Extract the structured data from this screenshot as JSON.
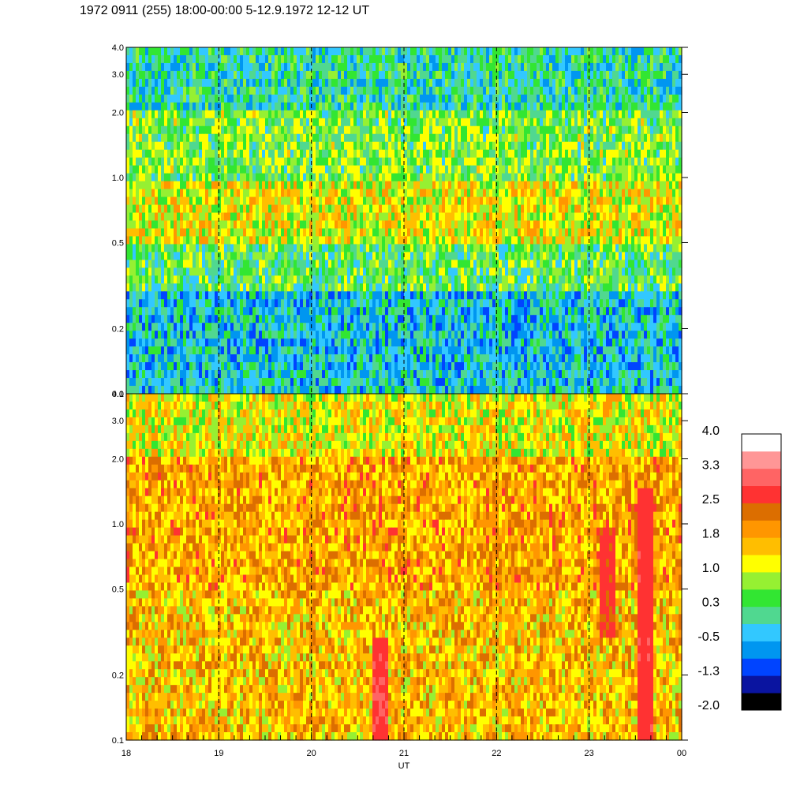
{
  "title": "1972 0911 (255) 18:00-00:00 5-12.9.1972  12-12 UT",
  "chart_data": [
    {
      "type": "heatmap",
      "panel": "upper",
      "y_scale": "log",
      "ylim": [
        0.1,
        4.0
      ],
      "y_ticks": [
        "4.0",
        "3.0",
        "2.0",
        "1.0",
        "0.5",
        "0.2",
        "0.1"
      ],
      "x_ticks": [
        "18",
        "19",
        "20",
        "21",
        "22",
        "23",
        "00"
      ],
      "xlabel": "UT",
      "dominant_colors_by_band": [
        {
          "y_range": [
            2.0,
            4.0
          ],
          "value": 0.0
        },
        {
          "y_range": [
            1.0,
            2.0
          ],
          "value": 0.6
        },
        {
          "y_range": [
            0.5,
            1.0
          ],
          "value": 1.2
        },
        {
          "y_range": [
            0.3,
            0.5
          ],
          "value": 0.4
        },
        {
          "y_range": [
            0.1,
            0.3
          ],
          "value": -0.3
        }
      ]
    },
    {
      "type": "heatmap",
      "panel": "lower",
      "y_scale": "log",
      "ylim": [
        0.1,
        4.0
      ],
      "y_ticks": [
        "4.0",
        "3.0",
        "2.0",
        "1.0",
        "0.5",
        "0.2",
        "0.1"
      ],
      "x_ticks": [
        "18",
        "19",
        "20",
        "21",
        "22",
        "23",
        "00"
      ],
      "xlabel": "UT",
      "dominant_colors_by_band": [
        {
          "y_range": [
            2.0,
            4.0
          ],
          "value": 1.2
        },
        {
          "y_range": [
            0.5,
            2.0
          ],
          "value": 1.8
        },
        {
          "y_range": [
            0.1,
            0.5
          ],
          "value": 1.6
        }
      ],
      "hotspots": [
        {
          "ut": 20.75,
          "y_range": [
            0.1,
            0.3
          ],
          "value": 2.8
        },
        {
          "ut": 23.2,
          "y_range": [
            0.3,
            1.0
          ],
          "value": 2.6
        },
        {
          "ut": 23.6,
          "y_range": [
            0.1,
            1.5
          ],
          "value": 2.7
        }
      ]
    }
  ],
  "colorbar": {
    "tick_labels": [
      "4.0",
      "3.3",
      "2.5",
      "1.8",
      "1.0",
      "0.3",
      "-0.5",
      "-1.3",
      "-2.0"
    ],
    "colors": [
      "#000000",
      "#0a14a0",
      "#0044ff",
      "#0096f0",
      "#32c8ff",
      "#50d890",
      "#32e632",
      "#96f032",
      "#ffff00",
      "#ffbe00",
      "#ff9600",
      "#dc6e00",
      "#ff3232",
      "#ff6464",
      "#ff9696",
      "#ffffff"
    ]
  }
}
